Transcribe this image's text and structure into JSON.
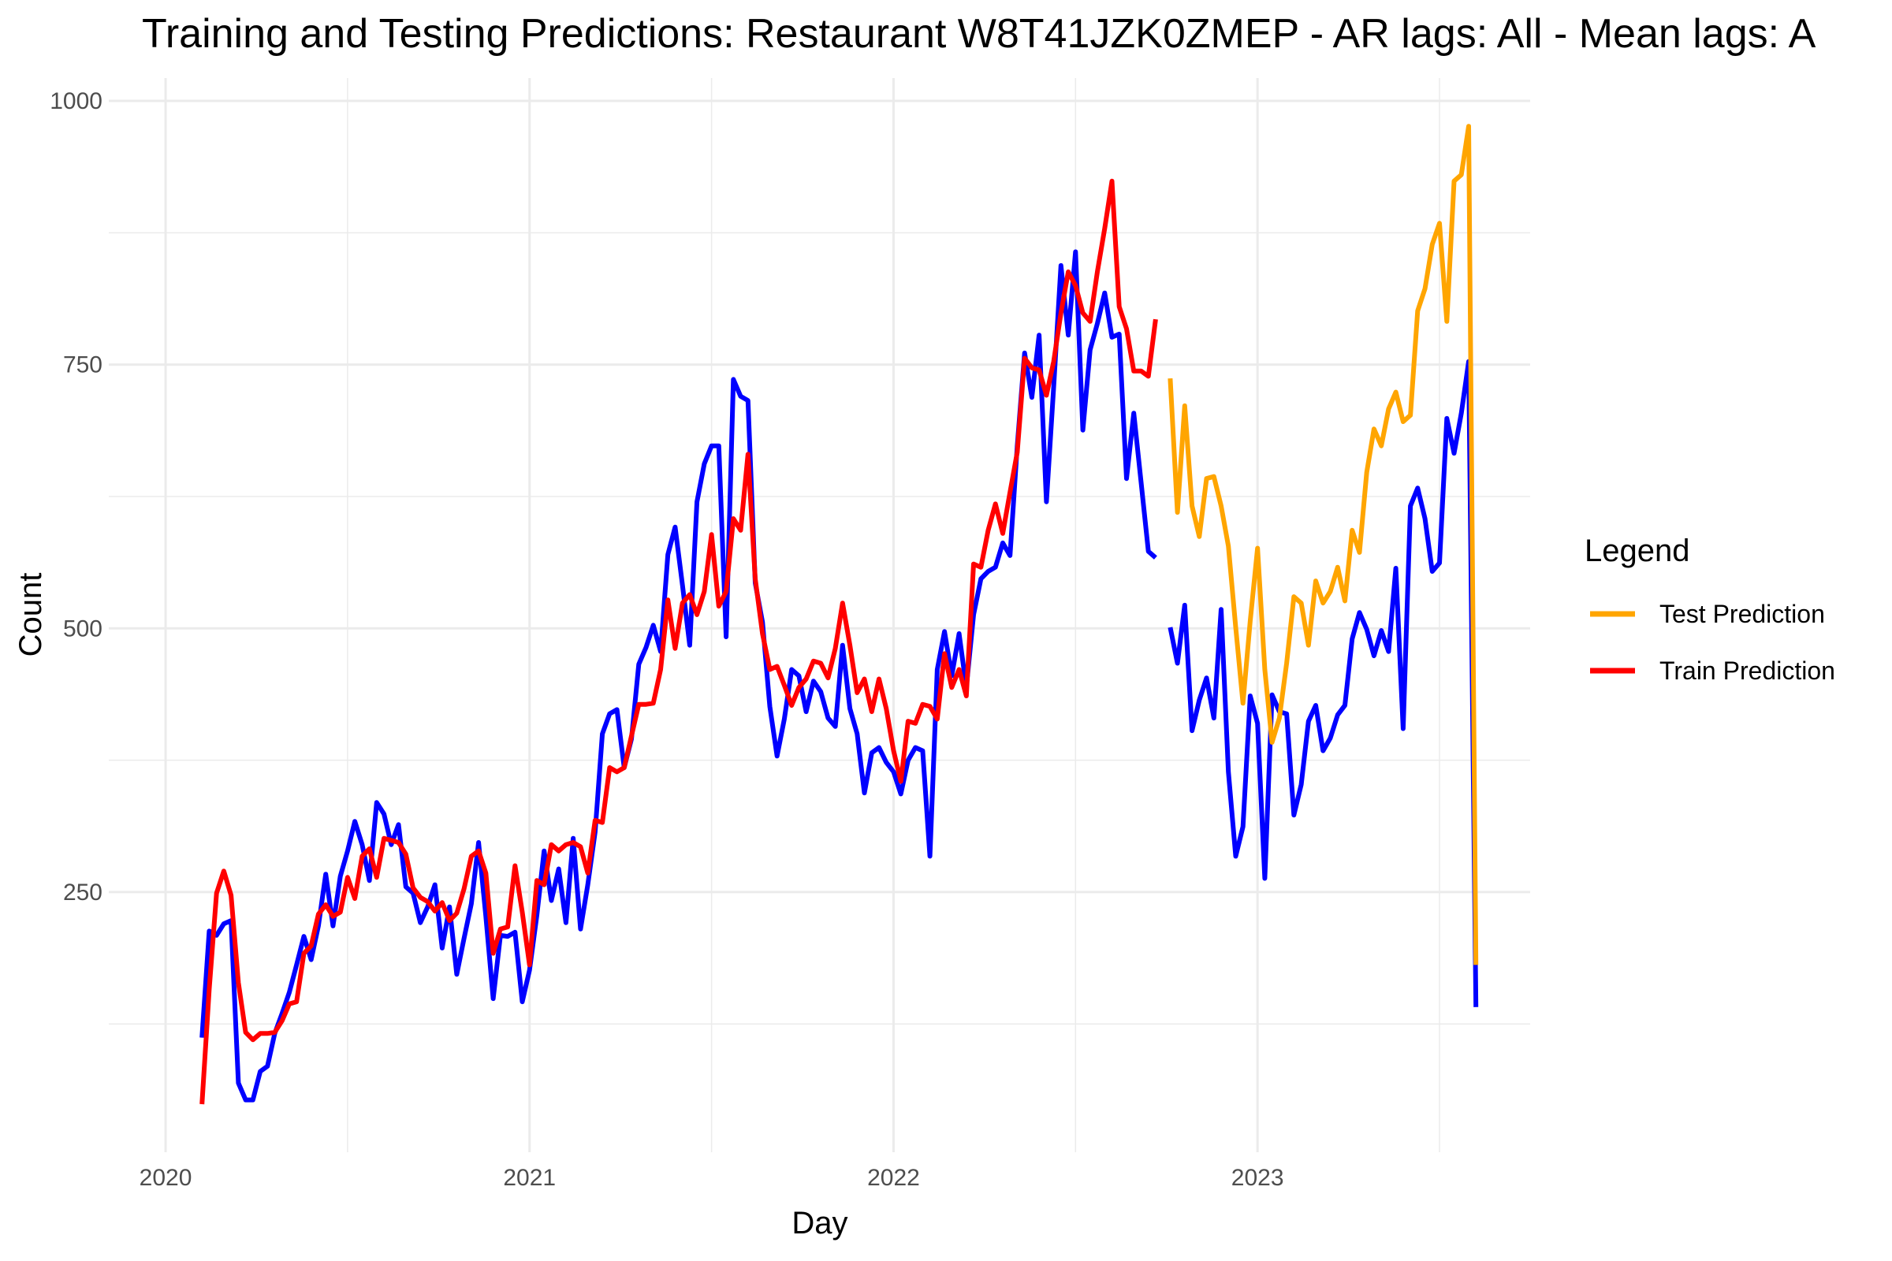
{
  "chart_data": {
    "type": "line",
    "title": "Training and Testing Predictions: Restaurant W8T41JZK0ZMEP - AR lags: All - Mean lags: A",
    "x_label": "Day",
    "y_label": "Count",
    "legend_title": "Legend",
    "legend_position": "right",
    "grid": true,
    "xlim": [
      2019.844,
      2023.749
    ],
    "ylim": [
      3.4,
      1021.7
    ],
    "xticks": [
      2020,
      2021,
      2022,
      2023
    ],
    "yticks": [
      250,
      500,
      750,
      1000
    ],
    "x_minor_ticks": [
      2020.5,
      2021.5,
      2022.5,
      2023.5
    ],
    "y_minor_ticks": [
      125,
      375,
      625,
      875
    ],
    "x": [
      2020.1,
      2020.12,
      2020.14,
      2020.16,
      2020.18,
      2020.2,
      2020.22,
      2020.24,
      2020.26,
      2020.28,
      2020.3,
      2020.32,
      2020.34,
      2020.36,
      2020.38,
      2020.4,
      2020.42,
      2020.44,
      2020.46,
      2020.48,
      2020.5,
      2020.52,
      2020.54,
      2020.56,
      2020.58,
      2020.6,
      2020.62,
      2020.64,
      2020.66,
      2020.68,
      2020.7,
      2020.72,
      2020.74,
      2020.76,
      2020.78,
      2020.8,
      2020.82,
      2020.84,
      2020.86,
      2020.88,
      2020.9,
      2020.92,
      2020.94,
      2020.96,
      2020.98,
      2021,
      2021.02,
      2021.04,
      2021.06,
      2021.08,
      2021.1,
      2021.12,
      2021.14,
      2021.16,
      2021.18,
      2021.2,
      2021.22,
      2021.24,
      2021.26,
      2021.28,
      2021.3,
      2021.32,
      2021.34,
      2021.36,
      2021.38,
      2021.4,
      2021.42,
      2021.44,
      2021.46,
      2021.48,
      2021.5,
      2021.52,
      2021.54,
      2021.56,
      2021.58,
      2021.6,
      2021.62,
      2021.64,
      2021.66,
      2021.68,
      2021.7,
      2021.72,
      2021.74,
      2021.76,
      2021.78,
      2021.8,
      2021.82,
      2021.84,
      2021.86,
      2021.88,
      2021.9,
      2021.92,
      2021.94,
      2021.96,
      2021.98,
      2022,
      2022.02,
      2022.04,
      2022.06,
      2022.08,
      2022.1,
      2022.12,
      2022.14,
      2022.16,
      2022.18,
      2022.2,
      2022.22,
      2022.24,
      2022.26,
      2022.28,
      2022.3,
      2022.32,
      2022.34,
      2022.36,
      2022.38,
      2022.4,
      2022.42,
      2022.44,
      2022.46,
      2022.48,
      2022.5,
      2022.52,
      2022.54,
      2022.56,
      2022.58,
      2022.6,
      2022.62,
      2022.64,
      2022.66,
      2022.68,
      2022.7,
      2022.72,
      2022.74,
      2022.76,
      2022.78,
      2022.8,
      2022.82,
      2022.84,
      2022.86,
      2022.88,
      2022.9,
      2022.92,
      2022.94,
      2022.96,
      2022.98,
      2023,
      2023.02,
      2023.04,
      2023.06,
      2023.08,
      2023.1,
      2023.12,
      2023.14,
      2023.16,
      2023.18,
      2023.2,
      2023.22,
      2023.24,
      2023.26,
      2023.28,
      2023.3,
      2023.32,
      2023.34,
      2023.36,
      2023.38,
      2023.4,
      2023.42,
      2023.44,
      2023.46,
      2023.48,
      2023.5,
      2023.52,
      2023.54,
      2023.56,
      2023.58,
      2023.6
    ],
    "series": [
      {
        "color": "#0000ff",
        "values": [
          112,
          213,
          209,
          220,
          223,
          69,
          53,
          53,
          80,
          85,
          116,
          135,
          155,
          181,
          208,
          186,
          218,
          267,
          218,
          265,
          289,
          317,
          295,
          261,
          335,
          324,
          295,
          314,
          255,
          249,
          221,
          236,
          257,
          197,
          236,
          172,
          206,
          239,
          297,
          227,
          149,
          209,
          208,
          212,
          146,
          176,
          228,
          289,
          242,
          272,
          221,
          301,
          215,
          257,
          307,
          400,
          419,
          423,
          368,
          395,
          466,
          482,
          503,
          478,
          570,
          596,
          541,
          484,
          620,
          656,
          673,
          673,
          492,
          736,
          720,
          716,
          543,
          506,
          426,
          379,
          414,
          461,
          455,
          421,
          450,
          440,
          415,
          407,
          484,
          424,
          400,
          344,
          382,
          387,
          373,
          364,
          343,
          375,
          387,
          384,
          284,
          461,
          497,
          455,
          495,
          444,
          513,
          547,
          554,
          558,
          581,
          569,
          673,
          761,
          719,
          778,
          620,
          729,
          844,
          778,
          857,
          688,
          764,
          789,
          818,
          776,
          779,
          642,
          704,
          639,
          573,
          567,
          null,
          501,
          467,
          522,
          403,
          432,
          453,
          415,
          518,
          364,
          284,
          312,
          436,
          410,
          263,
          437,
          421,
          419,
          323,
          352,
          412,
          427,
          384,
          396,
          418,
          427,
          490,
          515,
          499,
          474,
          498,
          478,
          557,
          405,
          616,
          633,
          604,
          554,
          562,
          699,
          666,
          704,
          753,
          141
        ]
      },
      {
        "name": "Test Prediction",
        "color": "#ffa500",
        "values": [
          null,
          null,
          null,
          null,
          null,
          null,
          null,
          null,
          null,
          null,
          null,
          null,
          null,
          null,
          null,
          null,
          null,
          null,
          null,
          null,
          null,
          null,
          null,
          null,
          null,
          null,
          null,
          null,
          null,
          null,
          null,
          null,
          null,
          null,
          null,
          null,
          null,
          null,
          null,
          null,
          null,
          null,
          null,
          null,
          null,
          null,
          null,
          null,
          null,
          null,
          null,
          null,
          null,
          null,
          null,
          null,
          null,
          null,
          null,
          null,
          null,
          null,
          null,
          null,
          null,
          null,
          null,
          null,
          null,
          null,
          null,
          null,
          null,
          null,
          null,
          null,
          null,
          null,
          null,
          null,
          null,
          null,
          null,
          null,
          null,
          null,
          null,
          null,
          null,
          null,
          null,
          null,
          null,
          null,
          null,
          null,
          null,
          null,
          null,
          null,
          null,
          null,
          null,
          null,
          null,
          null,
          null,
          null,
          null,
          null,
          null,
          null,
          null,
          null,
          null,
          null,
          null,
          null,
          null,
          null,
          null,
          null,
          null,
          null,
          null,
          null,
          null,
          null,
          null,
          null,
          null,
          null,
          null,
          737,
          610,
          711,
          616,
          587,
          642,
          644,
          616,
          578,
          501,
          429,
          507,
          576,
          461,
          392,
          415,
          467,
          530,
          524,
          484,
          545,
          524,
          535,
          558,
          526,
          593,
          572,
          648,
          689,
          673,
          708,
          724,
          696,
          702,
          801,
          822,
          864,
          884,
          791,
          924,
          930,
          976,
          181
        ]
      },
      {
        "name": "Train Prediction",
        "color": "#ff0000",
        "values": [
          49,
          158,
          249,
          270,
          247,
          164,
          117,
          110,
          116,
          116,
          117,
          128,
          144,
          146,
          192,
          199,
          229,
          238,
          227,
          231,
          264,
          244,
          284,
          291,
          264,
          301,
          299,
          297,
          286,
          254,
          245,
          241,
          232,
          240,
          223,
          230,
          253,
          284,
          289,
          268,
          192,
          215,
          217,
          275,
          231,
          181,
          261,
          257,
          295,
          289,
          295,
          297,
          293,
          268,
          318,
          316,
          368,
          364,
          368,
          398,
          428,
          428,
          429,
          461,
          527,
          481,
          524,
          532,
          513,
          535,
          589,
          521,
          535,
          604,
          593,
          665,
          547,
          495,
          461,
          464,
          446,
          427,
          444,
          452,
          469,
          467,
          453,
          481,
          524,
          484,
          439,
          452,
          421,
          452,
          424,
          384,
          355,
          412,
          410,
          428,
          426,
          414,
          476,
          444,
          461,
          436,
          561,
          558,
          593,
          618,
          590,
          629,
          667,
          756,
          747,
          745,
          721,
          753,
          799,
          838,
          825,
          799,
          791,
          838,
          879,
          924,
          805,
          784,
          744,
          744,
          739,
          793,
          null,
          null,
          null,
          null,
          null,
          null,
          null,
          null,
          null,
          null,
          null,
          null,
          null,
          null,
          null,
          null,
          null,
          null,
          null,
          null,
          null,
          null,
          null,
          null,
          null,
          null,
          null,
          null,
          null,
          null,
          null,
          null,
          null,
          null,
          null,
          null,
          null,
          null,
          null,
          null,
          null,
          null,
          null,
          null
        ]
      }
    ]
  }
}
